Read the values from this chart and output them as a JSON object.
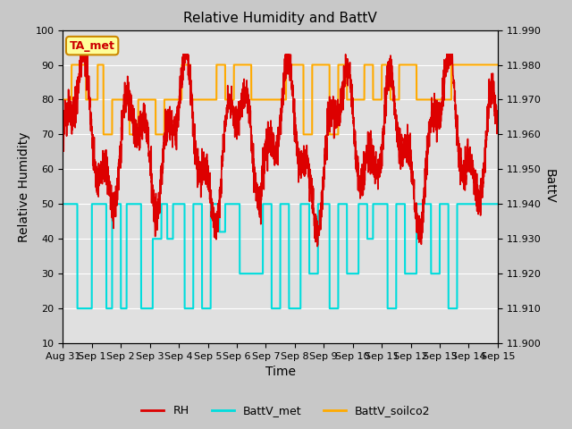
{
  "title": "Relative Humidity and BattV",
  "xlabel": "Time",
  "ylabel_left": "Relative Humidity",
  "ylabel_right": "BattV",
  "annotation_text": "TA_met",
  "annotation_color": "#cc0000",
  "annotation_bg": "#ffff99",
  "annotation_border": "#cc8800",
  "left_ylim": [
    10,
    100
  ],
  "right_ylim": [
    11.9,
    11.99
  ],
  "right_yticks": [
    11.9,
    11.91,
    11.92,
    11.93,
    11.94,
    11.95,
    11.96,
    11.97,
    11.98,
    11.99
  ],
  "left_yticks": [
    10,
    20,
    30,
    40,
    50,
    60,
    70,
    80,
    90,
    100
  ],
  "background_color": "#c8c8c8",
  "plot_bg_color": "#e0e0e0",
  "rh_color": "#dd0000",
  "battv_met_color": "#00dddd",
  "battv_soilco2_color": "#ffaa00",
  "rh_linewidth": 1.2,
  "battv_met_linewidth": 1.5,
  "battv_soilco2_linewidth": 1.5,
  "tick_fontsize": 8,
  "label_fontsize": 10,
  "title_fontsize": 11
}
